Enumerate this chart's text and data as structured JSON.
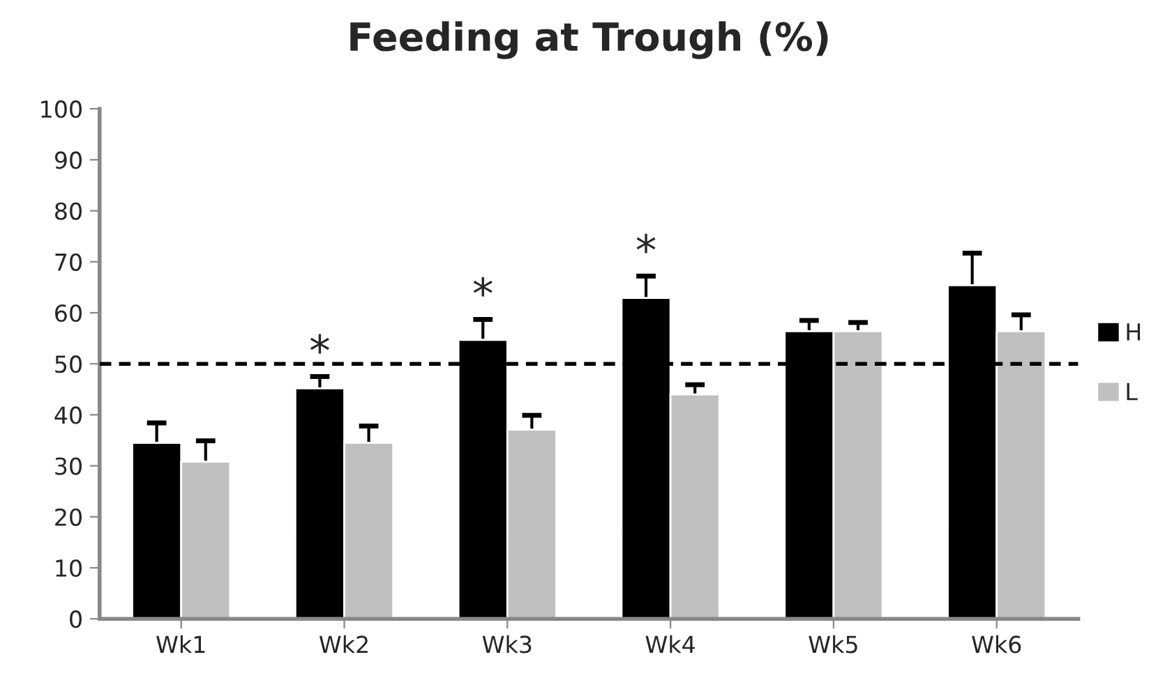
{
  "chart_data": {
    "type": "bar",
    "title": "Feeding at Trough (%)",
    "categories": [
      "Wk1",
      "Wk2",
      "Wk3",
      "Wk4",
      "Wk5",
      "Wk6"
    ],
    "series": [
      {
        "name": "H",
        "color": "#000000",
        "values": [
          34.5,
          45.2,
          54.7,
          62.9,
          56.4,
          65.4
        ],
        "errors": [
          3.9,
          2.3,
          4.0,
          4.3,
          2.1,
          6.3
        ]
      },
      {
        "name": "L",
        "color": "#c0c0c0",
        "values": [
          30.8,
          34.5,
          37.1,
          44.0,
          56.4,
          56.4
        ],
        "errors": [
          4.1,
          3.3,
          2.8,
          1.9,
          1.7,
          3.2
        ]
      }
    ],
    "ylim": [
      0,
      100
    ],
    "yticks": [
      0,
      10,
      20,
      30,
      40,
      50,
      60,
      70,
      80,
      90,
      100
    ],
    "ref_lines": [
      {
        "axis": "y",
        "value": 50,
        "line_style": "dashed",
        "color": "#000000"
      }
    ],
    "annotations": [
      {
        "text": "*",
        "x": "Wk2",
        "y": 45.2
      },
      {
        "text": "*",
        "x": "Wk3",
        "y": 54.7
      },
      {
        "text": "*",
        "x": "Wk4",
        "y": 62.9
      }
    ],
    "legend": "right",
    "grid": false
  }
}
